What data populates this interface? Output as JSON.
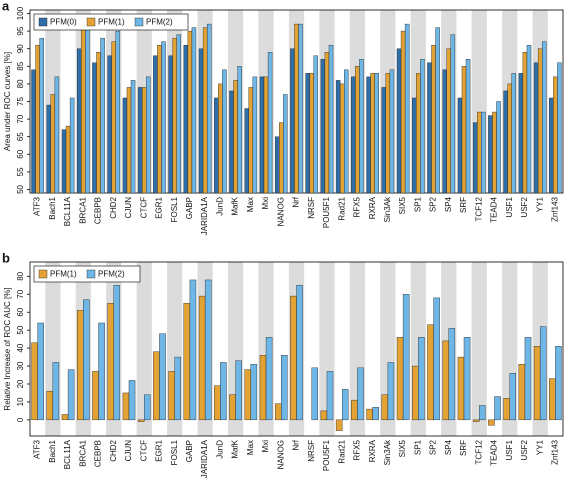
{
  "chart_data": [
    {
      "type": "bar",
      "panel_label": "a",
      "y_label": "Area under ROC curves [%]",
      "categories": [
        "ATF3",
        "Bach1",
        "BCL11A",
        "BRCA1",
        "CEBPB",
        "CHD2",
        "CJUN",
        "CTCF",
        "EGR1",
        "FOSL1",
        "GABP",
        "JARIDA1A",
        "JunD",
        "MafK",
        "Max",
        "Mxi",
        "NANOG",
        "Nrf",
        "NRSF",
        "POU5F1",
        "Rad21",
        "RFX5",
        "RXRA",
        "Sin3Ak",
        "SIX5",
        "SP1",
        "SP2",
        "SP4",
        "SRF",
        "TCF12",
        "TEAD4",
        "USF1",
        "USF2",
        "YY1",
        "Znf143"
      ],
      "series": [
        {
          "name": "PFM(0)",
          "color": "#2f6ea6",
          "values": [
            84,
            74,
            67,
            90,
            86,
            88,
            76,
            79,
            88,
            88,
            91,
            90,
            76,
            78,
            73,
            82,
            65,
            90,
            83,
            87,
            81,
            82,
            82,
            79,
            90,
            76,
            86,
            84,
            76,
            69,
            71,
            78,
            83,
            86,
            76
          ]
        },
        {
          "name": "PFM(1)",
          "color": "#e3a234",
          "values": [
            91,
            77,
            68,
            96,
            89,
            92,
            79,
            79,
            91,
            93,
            95,
            96,
            80,
            81,
            79,
            82,
            69,
            97,
            83,
            89,
            80,
            85,
            83,
            83,
            95,
            83,
            91,
            90,
            85,
            72,
            72,
            80,
            89,
            90,
            82
          ]
        },
        {
          "name": "PFM(2)",
          "color": "#6db6e6",
          "values": [
            93,
            82,
            76,
            97,
            93,
            95,
            81,
            82,
            92,
            94,
            96,
            97,
            84,
            85,
            82,
            89,
            77,
            97,
            88,
            91,
            84,
            87,
            83,
            84,
            97,
            87,
            96,
            94,
            87,
            72,
            75,
            83,
            91,
            92,
            86
          ]
        }
      ],
      "ylim": [
        49,
        101
      ],
      "yticks": [
        50,
        55,
        60,
        65,
        70,
        75,
        80,
        85,
        90,
        95,
        100
      ],
      "legend": "upper left"
    },
    {
      "type": "bar",
      "panel_label": "b",
      "y_label": "Relative Increase of ROC AUC [%]",
      "categories": [
        "ATF3",
        "Bach1",
        "BCL11A",
        "BRCA1",
        "CEBPB",
        "CHD2",
        "CJUN",
        "CTCF",
        "EGR1",
        "FOSL1",
        "GABP",
        "JARIDA1A",
        "JunD",
        "MafK",
        "Max",
        "Mxi",
        "NANOG",
        "Nrf",
        "NRSF",
        "POU5F1",
        "Rad21",
        "RFX5",
        "RXRA",
        "Sin3Ak",
        "SIX5",
        "SP1",
        "SP2",
        "SP4",
        "SRF",
        "TCF12",
        "TEAD4",
        "USF1",
        "USF2",
        "YY1",
        "Znf143"
      ],
      "series": [
        {
          "name": "PFM(1)",
          "color": "#e3a234",
          "values": [
            43,
            16,
            3,
            61,
            27,
            65,
            15,
            -1,
            38,
            27,
            65,
            69,
            19,
            14,
            28,
            36,
            9,
            69,
            0,
            5,
            -6,
            11,
            6,
            14,
            46,
            30,
            53,
            44,
            35,
            -1,
            -3,
            12,
            31,
            41,
            23
          ]
        },
        {
          "name": "PFM(2)",
          "color": "#6db6e6",
          "values": [
            54,
            32,
            28,
            67,
            54,
            75,
            22,
            14,
            48,
            35,
            78,
            78,
            32,
            33,
            31,
            46,
            36,
            75,
            29,
            27,
            17,
            29,
            7,
            32,
            70,
            46,
            68,
            51,
            46,
            8,
            13,
            26,
            46,
            52,
            41
          ]
        }
      ],
      "ylim": [
        -9,
        88
      ],
      "yticks": [
        0,
        10,
        20,
        30,
        40,
        50,
        60,
        70,
        80
      ],
      "legend": "upper left"
    }
  ]
}
